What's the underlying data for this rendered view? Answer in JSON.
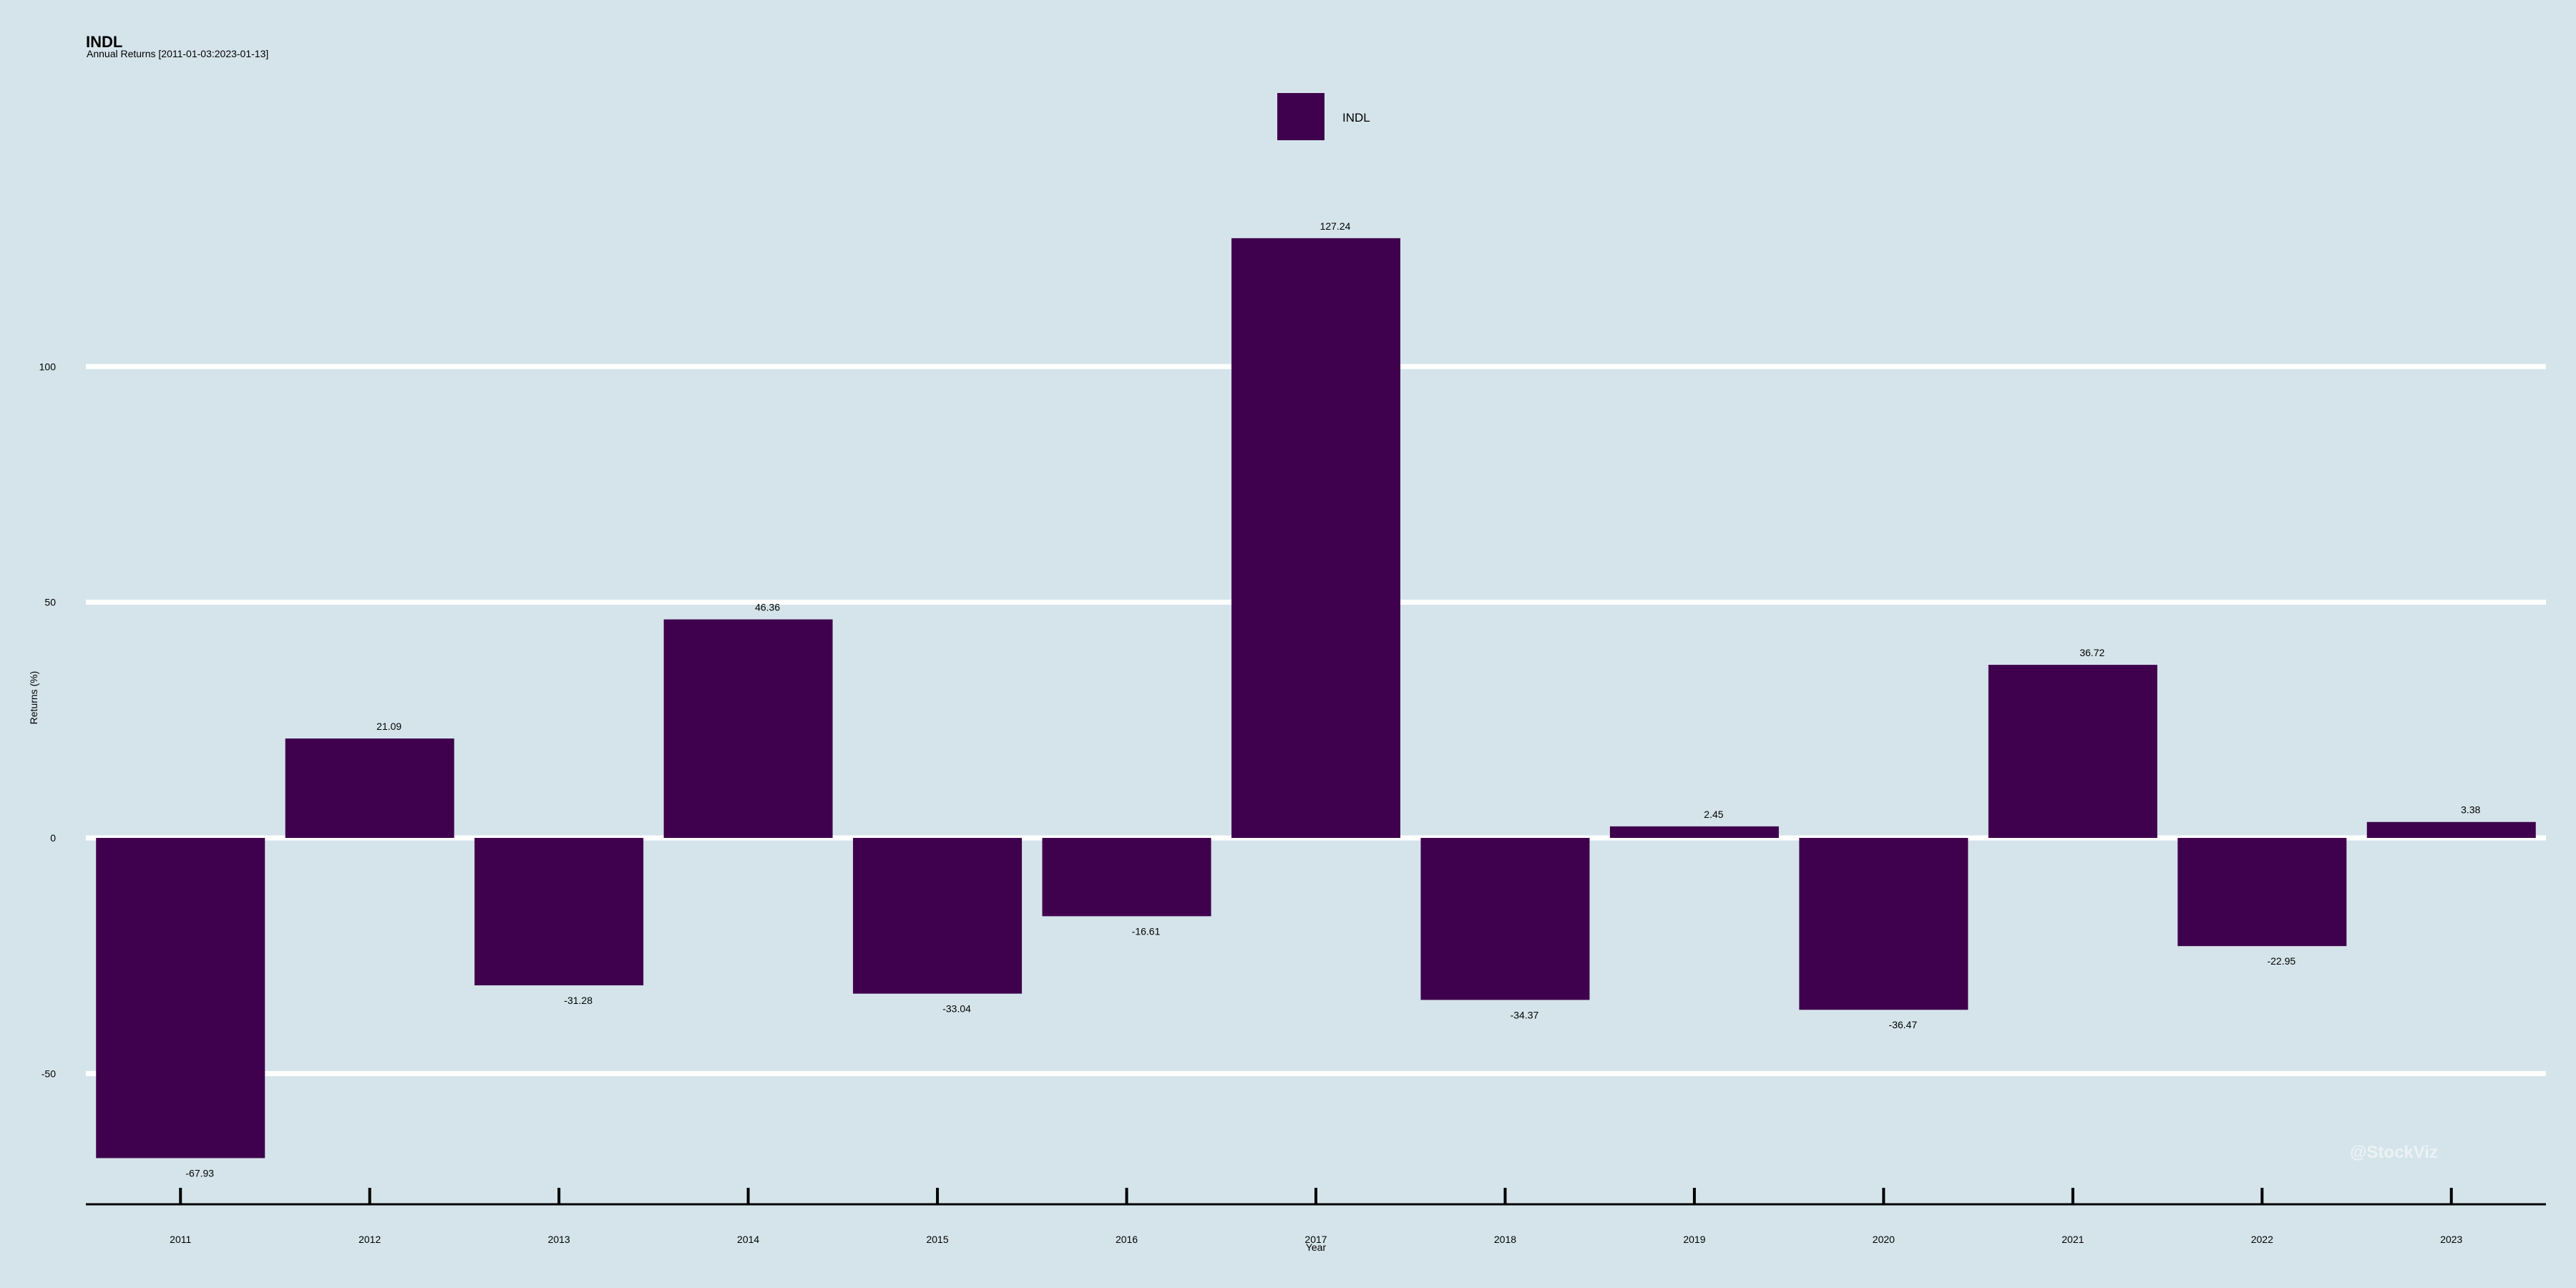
{
  "chart_data": {
    "type": "bar",
    "title": "INDL",
    "subtitle": "Annual Returns [2011-01-03:2023-01-13]",
    "xlabel": "Year",
    "ylabel": "Returns (%)",
    "categories": [
      "2011",
      "2012",
      "2013",
      "2014",
      "2015",
      "2016",
      "2017",
      "2018",
      "2019",
      "2020",
      "2021",
      "2022",
      "2023"
    ],
    "series": [
      {
        "name": "INDL",
        "values": [
          -67.93,
          21.09,
          -31.28,
          46.36,
          -33.04,
          -16.61,
          127.24,
          -34.37,
          2.45,
          -36.47,
          36.72,
          -22.95,
          3.38
        ]
      }
    ],
    "ylim": [
      -78,
      140
    ],
    "yticks": [
      -50,
      0,
      50,
      100
    ],
    "grid": true,
    "legend_position": "top-center",
    "bar_color": "#3f004d",
    "background_color": "#d5e4eb",
    "gridline_color": "#ffffff"
  },
  "watermark": "@StockViz"
}
